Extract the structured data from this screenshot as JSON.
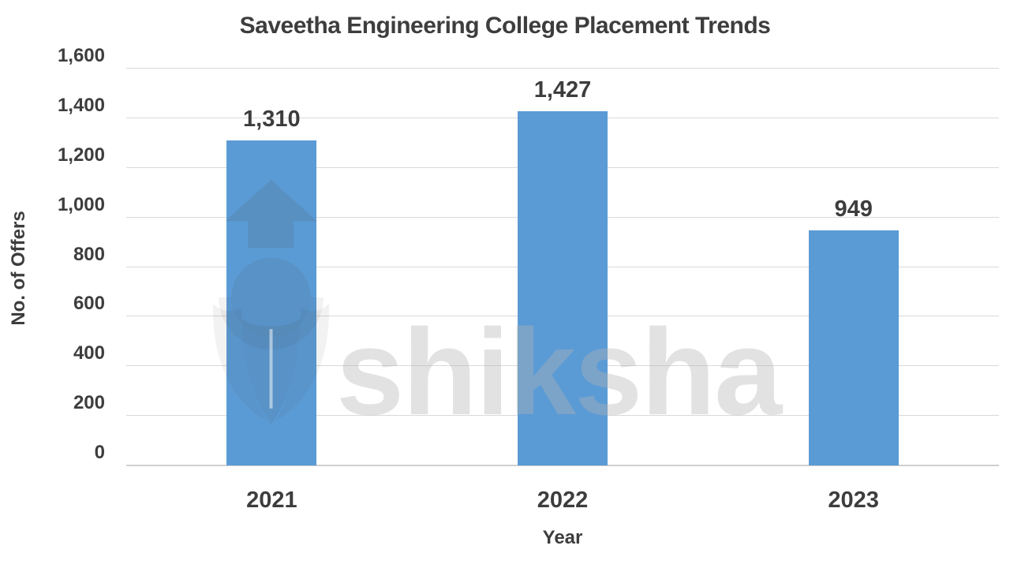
{
  "chart_data": {
    "type": "bar",
    "title": "Saveetha Engineering College Placement Trends",
    "xlabel": "Year",
    "ylabel": "No. of Offers",
    "categories": [
      "2021",
      "2022",
      "2023"
    ],
    "values": [
      1310,
      1427,
      949
    ],
    "value_labels": [
      "1,310",
      "1,427",
      "949"
    ],
    "ylim": [
      0,
      1600
    ],
    "ytick_interval": 200,
    "yticks": [
      "0",
      "200",
      "400",
      "600",
      "800",
      "1,000",
      "1,200",
      "1,400",
      "1,600"
    ],
    "grid": "horizontal-only",
    "legend": "none",
    "bar_color": "#5B9BD5",
    "grid_color": "#D9D9D9",
    "axis_line_color": "#CFCFCF",
    "text_color": "#3D3D3D"
  },
  "watermark": {
    "text": "shiksha",
    "logo": "shiksha pen-and-arrow emblem"
  }
}
